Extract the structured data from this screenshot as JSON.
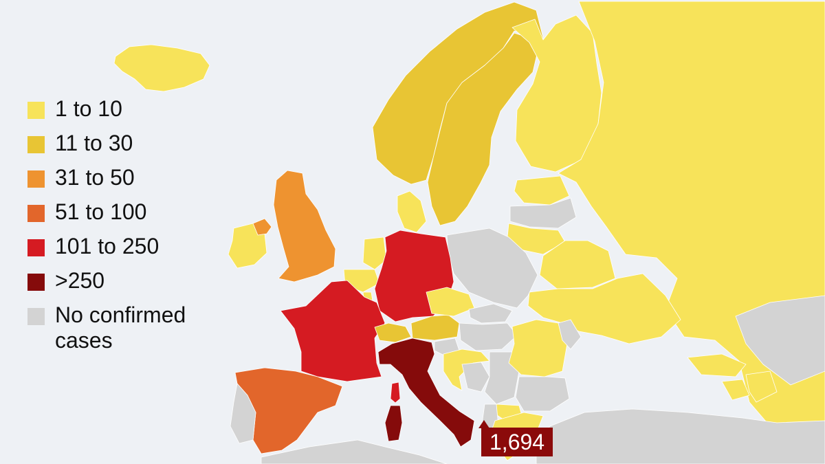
{
  "legend": [
    {
      "label": "1 to 10",
      "color": "#f7e35a"
    },
    {
      "label": "11 to 30",
      "color": "#e8c534"
    },
    {
      "label": "31 to 50",
      "color": "#ee9330"
    },
    {
      "label": "51 to 100",
      "color": "#e2662b"
    },
    {
      "label": "101 to 250",
      "color": "#d51b22"
    },
    {
      "label": ">250",
      "color": "#850b0b"
    },
    {
      "label": "No confirmed\ncases",
      "color": "#d3d3d3"
    }
  ],
  "callout": {
    "value": "1,694",
    "color": "#8b0a0a"
  },
  "map": {
    "background_color": "#eef1f5",
    "no_data_color": "#d3d3d3",
    "regions": [
      {
        "name": "Iceland",
        "bin": "1 to 10"
      },
      {
        "name": "Norway",
        "bin": "11 to 30"
      },
      {
        "name": "Sweden",
        "bin": "11 to 30"
      },
      {
        "name": "Finland",
        "bin": "1 to 10"
      },
      {
        "name": "Russia",
        "bin": "1 to 10"
      },
      {
        "name": "Estonia",
        "bin": "1 to 10"
      },
      {
        "name": "Latvia",
        "bin": "No confirmed\ncases"
      },
      {
        "name": "Lithuania",
        "bin": "1 to 10"
      },
      {
        "name": "Belarus",
        "bin": "1 to 10"
      },
      {
        "name": "Ukraine",
        "bin": "1 to 10"
      },
      {
        "name": "Poland",
        "bin": "No confirmed\ncases"
      },
      {
        "name": "Denmark",
        "bin": "1 to 10"
      },
      {
        "name": "United Kingdom",
        "bin": "31 to 50"
      },
      {
        "name": "Ireland",
        "bin": "1 to 10"
      },
      {
        "name": "Northern Ireland",
        "bin": "31 to 50"
      },
      {
        "name": "Netherlands",
        "bin": "1 to 10"
      },
      {
        "name": "Belgium",
        "bin": "1 to 10"
      },
      {
        "name": "Luxembourg",
        "bin": "1 to 10"
      },
      {
        "name": "Germany",
        "bin": "101 to 250"
      },
      {
        "name": "France",
        "bin": "101 to 250"
      },
      {
        "name": "Switzerland",
        "bin": "11 to 30"
      },
      {
        "name": "Austria",
        "bin": "11 to 30"
      },
      {
        "name": "Czech Republic",
        "bin": "1 to 10"
      },
      {
        "name": "Slovakia",
        "bin": "No confirmed\ncases"
      },
      {
        "name": "Hungary",
        "bin": "No confirmed\ncases"
      },
      {
        "name": "Slovenia",
        "bin": "No confirmed\ncases"
      },
      {
        "name": "Croatia",
        "bin": "1 to 10"
      },
      {
        "name": "Bosnia and Herzegovina",
        "bin": "No confirmed\ncases"
      },
      {
        "name": "Serbia",
        "bin": "No confirmed\ncases"
      },
      {
        "name": "Romania",
        "bin": "1 to 10"
      },
      {
        "name": "Moldova",
        "bin": "No confirmed\ncases"
      },
      {
        "name": "Bulgaria",
        "bin": "No confirmed\ncases"
      },
      {
        "name": "North Macedonia",
        "bin": "1 to 10"
      },
      {
        "name": "Albania",
        "bin": "No confirmed\ncases"
      },
      {
        "name": "Greece",
        "bin": "1 to 10"
      },
      {
        "name": "Italy",
        "bin": ">250"
      },
      {
        "name": "Sardinia",
        "bin": ">250"
      },
      {
        "name": "Corsica",
        "bin": "101 to 250"
      },
      {
        "name": "Spain",
        "bin": "51 to 100"
      },
      {
        "name": "Portugal",
        "bin": "No confirmed\ncases"
      },
      {
        "name": "Turkey",
        "bin": "No confirmed\ncases"
      },
      {
        "name": "Georgia",
        "bin": "1 to 10"
      },
      {
        "name": "Armenia",
        "bin": "1 to 10"
      },
      {
        "name": "Azerbaijan",
        "bin": "1 to 10"
      },
      {
        "name": "Kazakhstan",
        "bin": "No confirmed\ncases"
      },
      {
        "name": "North Africa",
        "bin": "No confirmed\ncases"
      }
    ]
  }
}
